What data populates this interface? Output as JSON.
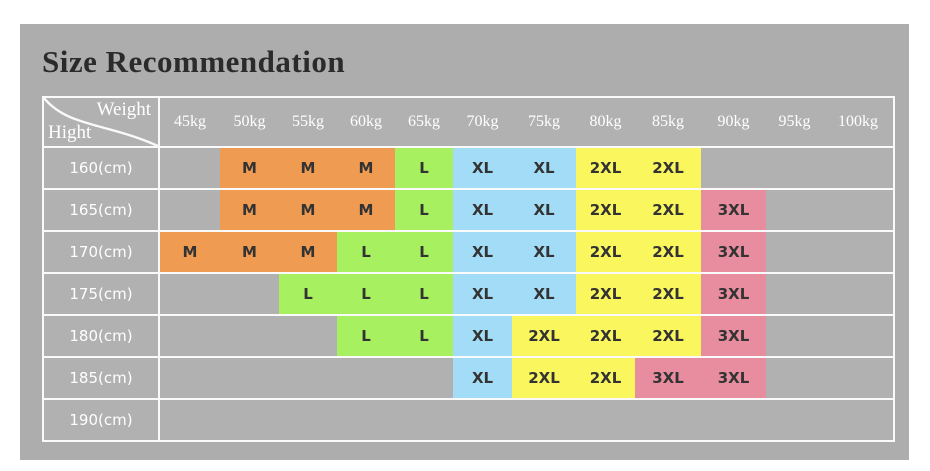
{
  "title": "Size Recommendation",
  "chart_data": {
    "type": "table",
    "title": "Size Recommendation",
    "corner_top_label": "Weight",
    "corner_bottom_label": "Hight",
    "columns": [
      "45kg",
      "50kg",
      "55kg",
      "60kg",
      "65kg",
      "70kg",
      "75kg",
      "80kg",
      "85kg",
      "90kg",
      "95kg",
      "100kg"
    ],
    "rows": [
      {
        "label": "160(cm)",
        "values": [
          "",
          "M",
          "M",
          "M",
          "L",
          "XL",
          "XL",
          "2XL",
          "2XL",
          "",
          "",
          ""
        ]
      },
      {
        "label": "165(cm)",
        "values": [
          "",
          "M",
          "M",
          "M",
          "L",
          "XL",
          "XL",
          "2XL",
          "2XL",
          "3XL",
          "",
          ""
        ]
      },
      {
        "label": "170(cm)",
        "values": [
          "M",
          "M",
          "M",
          "L",
          "L",
          "XL",
          "XL",
          "2XL",
          "2XL",
          "3XL",
          "",
          ""
        ]
      },
      {
        "label": "175(cm)",
        "values": [
          "",
          "",
          "L",
          "L",
          "L",
          "XL",
          "XL",
          "2XL",
          "2XL",
          "3XL",
          "",
          ""
        ]
      },
      {
        "label": "180(cm)",
        "values": [
          "",
          "",
          "",
          "L",
          "L",
          "XL",
          "2XL",
          "2XL",
          "2XL",
          "3XL",
          "",
          ""
        ]
      },
      {
        "label": "185(cm)",
        "values": [
          "",
          "",
          "",
          "",
          "",
          "XL",
          "2XL",
          "2XL",
          "3XL",
          "3XL",
          "",
          ""
        ]
      },
      {
        "label": "190(cm)",
        "values": [
          "",
          "",
          "",
          "",
          "",
          "",
          "",
          "",
          "",
          "",
          "",
          ""
        ]
      }
    ],
    "size_colors": {
      "M": "#EF9B51",
      "L": "#A7F05F",
      "XL": "#A2DCF6",
      "2XL": "#FAF75E",
      "3XL": "#E88C9F"
    }
  },
  "colors": {
    "page_bg": "#FFFFFF",
    "panel_bg": "#ADADAD",
    "cell_bg": "#B1B1B1",
    "border": "#FAFAFA",
    "header_text": "#FFFFFF",
    "size_text": "#333333",
    "title_text": "#2B2B2B"
  }
}
